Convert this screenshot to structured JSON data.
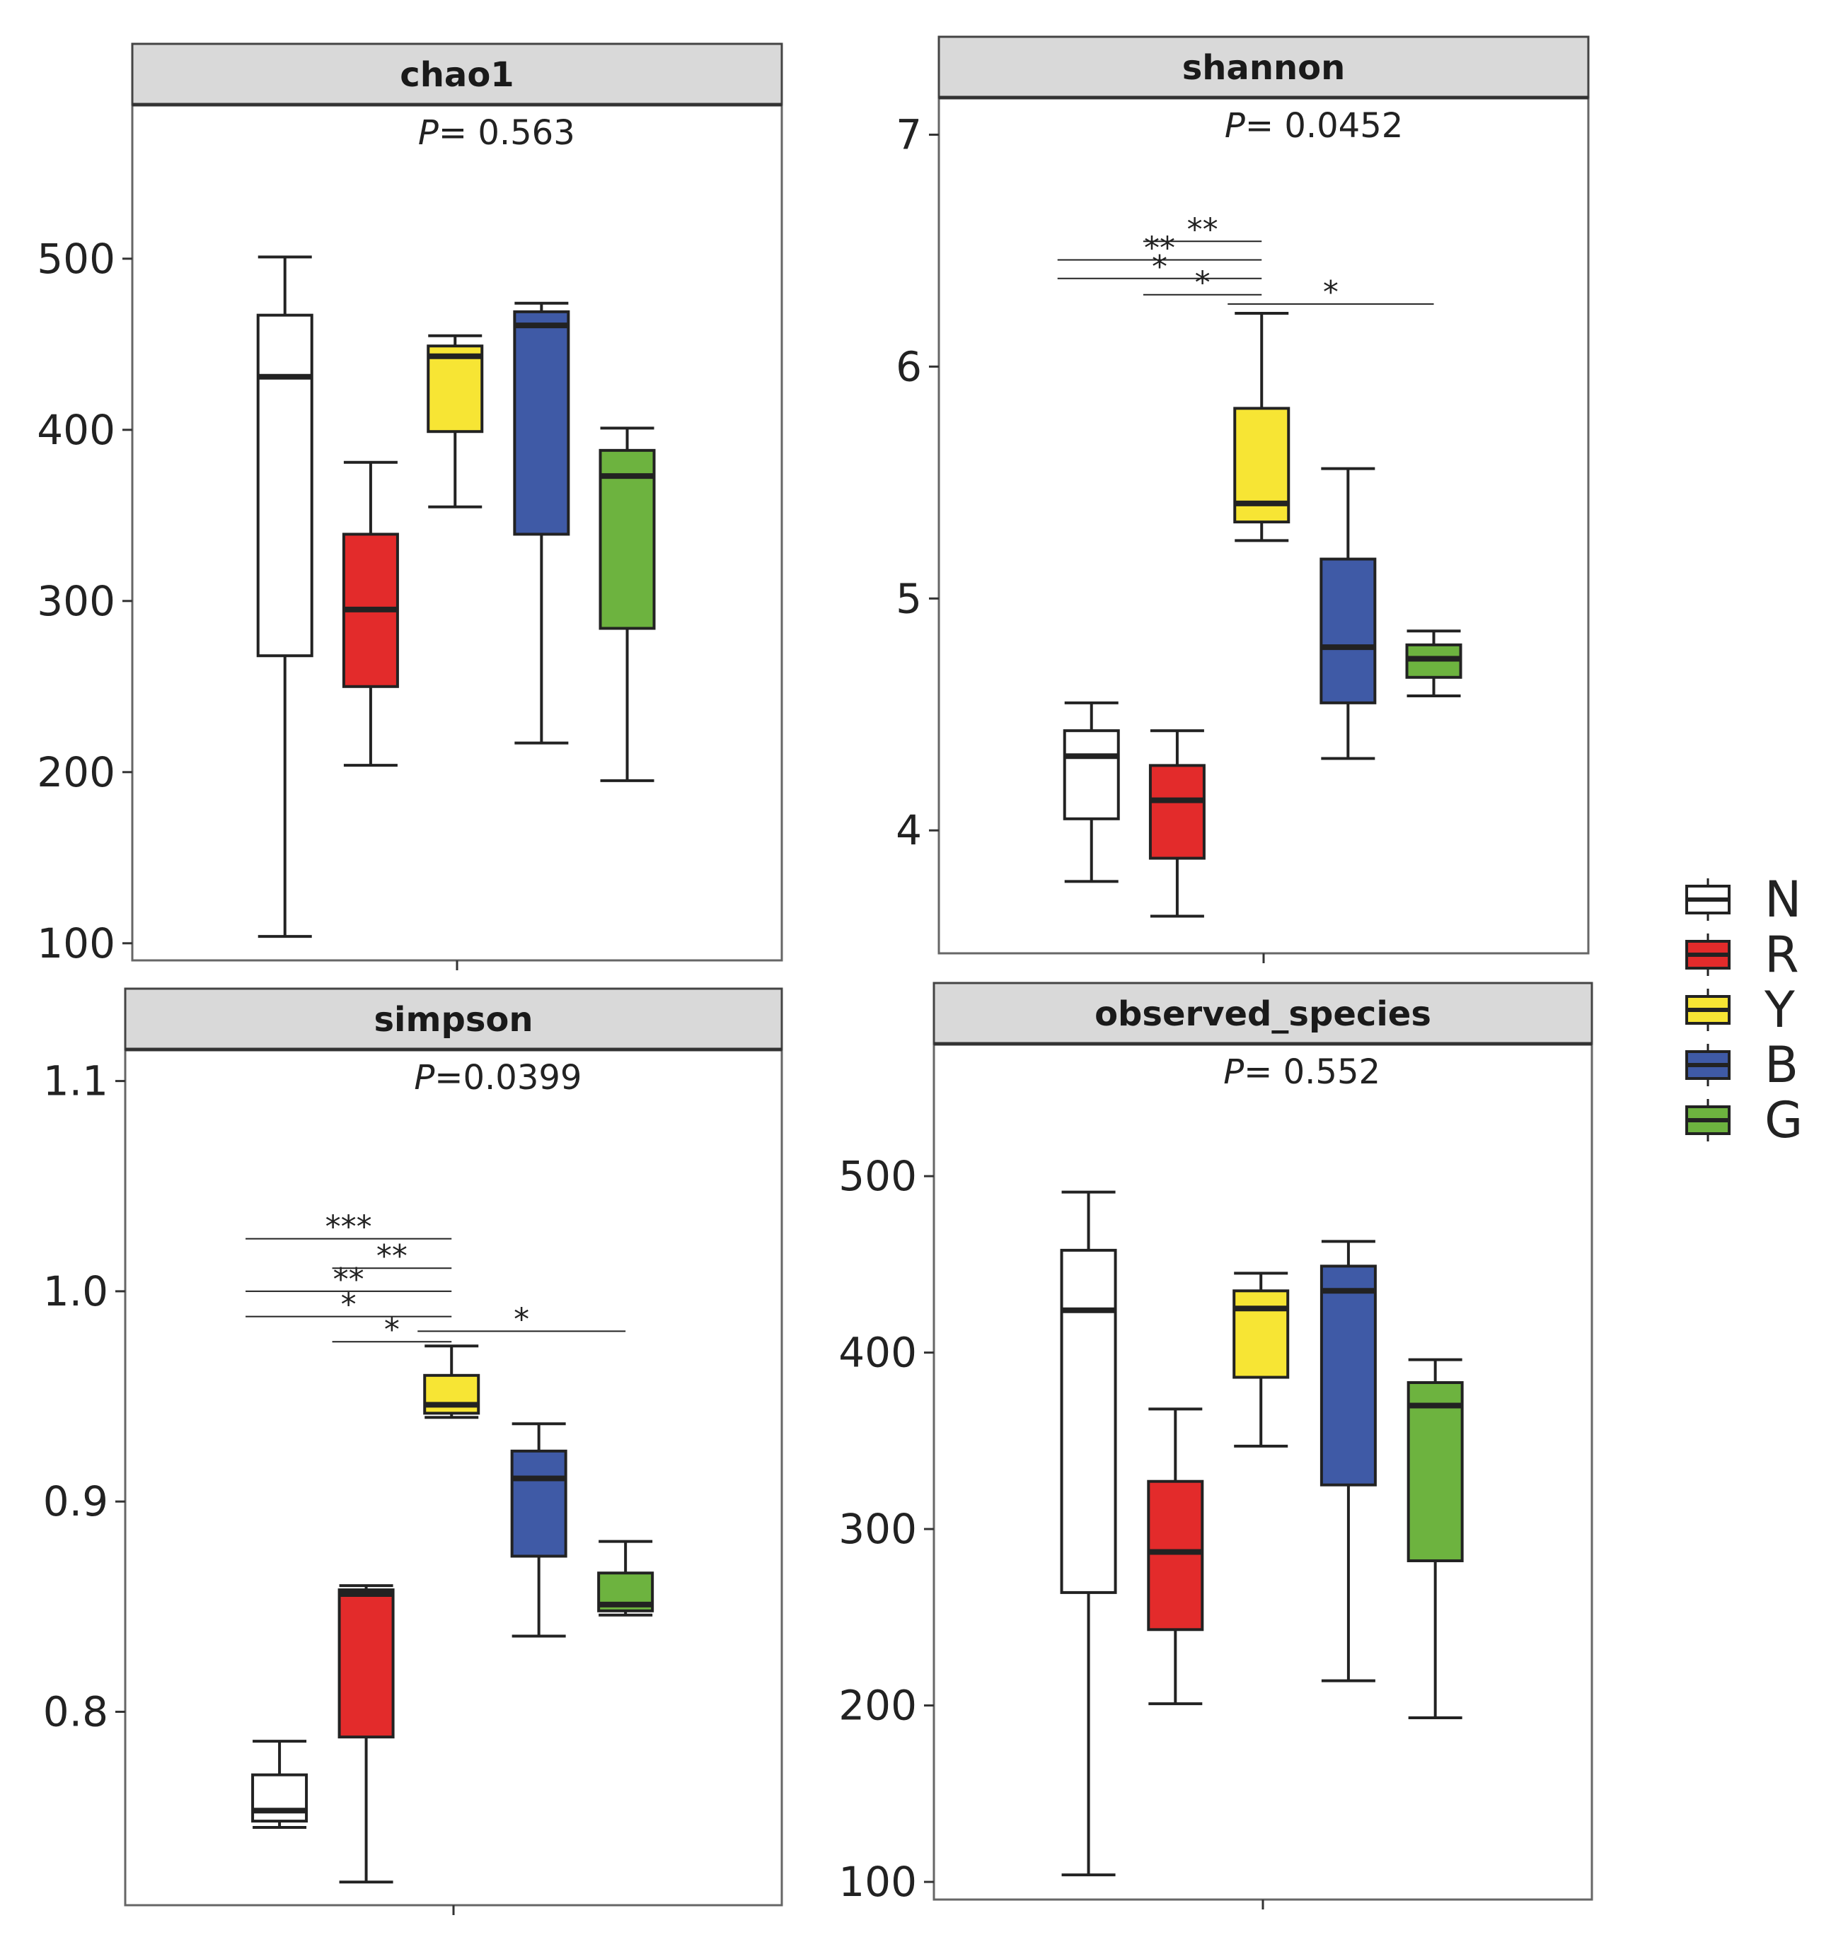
{
  "legend": {
    "items": [
      {
        "label": "N",
        "color": "#ffffff"
      },
      {
        "label": "R",
        "color": "#e32b2b"
      },
      {
        "label": "Y",
        "color": "#f7e534"
      },
      {
        "label": "B",
        "color": "#3f5aa6"
      },
      {
        "label": "G",
        "color": "#6db33f"
      }
    ]
  },
  "chart_data": [
    {
      "type": "box",
      "title": "chao1",
      "p_label": "P",
      "p_value": "= 0.563",
      "ylim": [
        90,
        590
      ],
      "yticks": [
        100,
        200,
        300,
        400,
        500
      ],
      "ytick_labels": [
        "100",
        "200",
        "300",
        "400",
        "500"
      ],
      "boxes": [
        {
          "group": "N",
          "min": 104,
          "q1": 268,
          "median": 431,
          "q3": 467,
          "max": 501
        },
        {
          "group": "R",
          "min": 204,
          "q1": 250,
          "median": 295,
          "q3": 339,
          "max": 381
        },
        {
          "group": "Y",
          "min": 355,
          "q1": 399,
          "median": 443,
          "q3": 449,
          "max": 455
        },
        {
          "group": "B",
          "min": 217,
          "q1": 339,
          "median": 461,
          "q3": 469,
          "max": 474
        },
        {
          "group": "G",
          "min": 195,
          "q1": 284,
          "median": 373,
          "q3": 388,
          "max": 401
        }
      ],
      "significance": []
    },
    {
      "type": "box",
      "title": "shannon",
      "p_label": "P",
      "p_value": "= 0.0452",
      "ylim": [
        3.47,
        7.16
      ],
      "yticks": [
        4,
        5,
        6,
        7
      ],
      "ytick_labels": [
        "4",
        "5",
        "6",
        "7"
      ],
      "boxes": [
        {
          "group": "N",
          "min": 3.78,
          "q1": 4.05,
          "median": 4.32,
          "q3": 4.43,
          "max": 4.55
        },
        {
          "group": "R",
          "min": 3.63,
          "q1": 3.88,
          "median": 4.13,
          "q3": 4.28,
          "max": 4.43
        },
        {
          "group": "Y",
          "min": 5.25,
          "q1": 5.33,
          "median": 5.41,
          "q3": 5.82,
          "max": 6.23
        },
        {
          "group": "B",
          "min": 4.31,
          "q1": 4.55,
          "median": 4.79,
          "q3": 5.17,
          "max": 5.56
        },
        {
          "group": "G",
          "min": 4.58,
          "q1": 4.66,
          "median": 4.74,
          "q3": 4.8,
          "max": 4.86
        }
      ],
      "significance": [
        {
          "from": "R",
          "to": "Y",
          "y": 6.54,
          "label": "**"
        },
        {
          "from": "N",
          "to": "Y",
          "y": 6.46,
          "label": "**"
        },
        {
          "from": "N",
          "to": "Y",
          "y": 6.38,
          "label": "*"
        },
        {
          "from": "R",
          "to": "Y",
          "y": 6.31,
          "label": "*"
        },
        {
          "from": "Y",
          "to": "G",
          "y": 6.27,
          "label": "*"
        }
      ]
    },
    {
      "type": "box",
      "title": "simpson",
      "p_label": "P",
      "p_value": "=0.0399",
      "ylim": [
        0.708,
        1.115
      ],
      "yticks": [
        0.8,
        0.9,
        1.0,
        1.1
      ],
      "ytick_labels": [
        "0.8",
        "0.9",
        "1.0",
        "1.1"
      ],
      "boxes": [
        {
          "group": "N",
          "min": 0.745,
          "q1": 0.748,
          "median": 0.753,
          "q3": 0.77,
          "max": 0.786
        },
        {
          "group": "R",
          "min": 0.719,
          "q1": 0.788,
          "median": 0.856,
          "q3": 0.858,
          "max": 0.86
        },
        {
          "group": "Y",
          "min": 0.94,
          "q1": 0.942,
          "median": 0.946,
          "q3": 0.96,
          "max": 0.974
        },
        {
          "group": "B",
          "min": 0.836,
          "q1": 0.874,
          "median": 0.911,
          "q3": 0.924,
          "max": 0.937
        },
        {
          "group": "G",
          "min": 0.846,
          "q1": 0.848,
          "median": 0.851,
          "q3": 0.866,
          "max": 0.881
        }
      ],
      "significance": [
        {
          "from": "N",
          "to": "Y",
          "y": 1.025,
          "label": "***"
        },
        {
          "from": "R",
          "to": "Y",
          "y": 1.011,
          "label": "**"
        },
        {
          "from": "N",
          "to": "Y",
          "y": 1.0,
          "label": "**"
        },
        {
          "from": "N",
          "to": "Y",
          "y": 0.988,
          "label": "*"
        },
        {
          "from": "R",
          "to": "Y",
          "y": 0.976,
          "label": "*"
        },
        {
          "from": "Y",
          "to": "G",
          "y": 0.981,
          "label": "*"
        }
      ]
    },
    {
      "type": "box",
      "title": "observed_species",
      "p_label": "P",
      "p_value": "= 0.552",
      "ylim": [
        90,
        575
      ],
      "yticks": [
        100,
        200,
        300,
        400,
        500
      ],
      "ytick_labels": [
        "100",
        "200",
        "300",
        "400",
        "500"
      ],
      "boxes": [
        {
          "group": "N",
          "min": 104,
          "q1": 264,
          "median": 424,
          "q3": 458,
          "max": 491
        },
        {
          "group": "R",
          "min": 201,
          "q1": 243,
          "median": 287,
          "q3": 327,
          "max": 368
        },
        {
          "group": "Y",
          "min": 347,
          "q1": 386,
          "median": 425,
          "q3": 435,
          "max": 445
        },
        {
          "group": "B",
          "min": 214,
          "q1": 325,
          "median": 435,
          "q3": 449,
          "max": 463
        },
        {
          "group": "G",
          "min": 193,
          "q1": 282,
          "median": 370,
          "q3": 383,
          "max": 396
        }
      ],
      "significance": []
    }
  ]
}
